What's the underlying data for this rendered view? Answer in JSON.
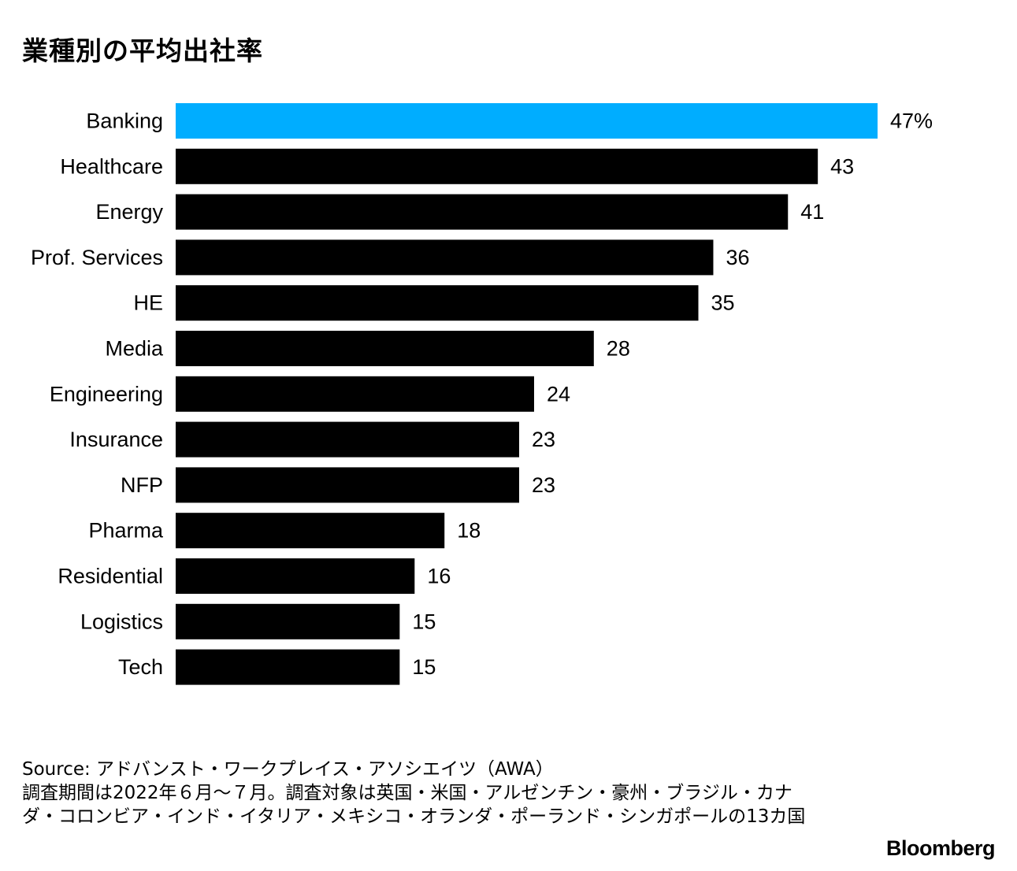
{
  "title": "業種別の平均出社率",
  "chart_data": {
    "type": "bar",
    "orientation": "horizontal",
    "title": "業種別の平均出社率",
    "xlabel": "",
    "ylabel": "",
    "unit": "%",
    "categories": [
      "Banking",
      "Healthcare",
      "Energy",
      "Prof. Services",
      "HE",
      "Media",
      "Engineering",
      "Insurance",
      "NFP",
      "Pharma",
      "Residential",
      "Logistics",
      "Tech"
    ],
    "values": [
      47,
      43,
      41,
      36,
      35,
      28,
      24,
      23,
      23,
      18,
      16,
      15,
      15
    ],
    "value_labels": [
      "47%",
      "43",
      "41",
      "36",
      "35",
      "28",
      "24",
      "23",
      "23",
      "18",
      "16",
      "15",
      "15"
    ],
    "highlight_index": 0,
    "colors": {
      "highlight": "#00adff",
      "default": "#000000"
    },
    "xlim": [
      0,
      47
    ],
    "grid": false,
    "legend": "none"
  },
  "source": {
    "line1": "Source: アドバンスト・ワークプレイス・アソシエイツ（AWA）",
    "line2": "調査期間は2022年６月～７月。調査対象は英国・米国・アルゼンチン・豪州・ブラジル・カナダ・コロンビア・インド・イタリア・メキシコ・オランダ・ポーランド・シンガポールの13カ国"
  },
  "brand": "Bloomberg"
}
